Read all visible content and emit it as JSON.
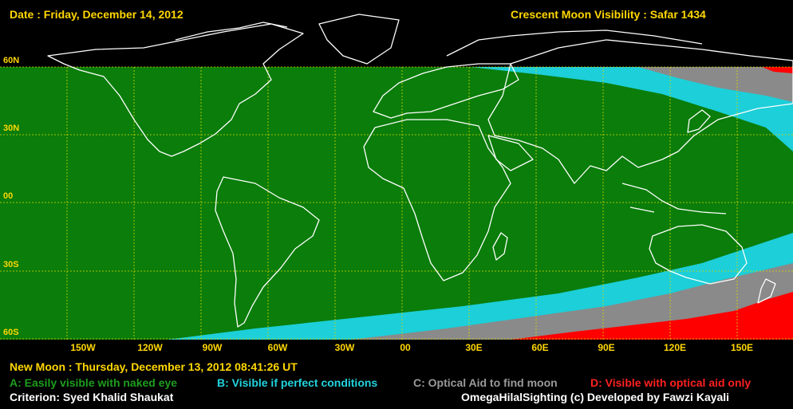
{
  "header": {
    "date": "Date : Friday, December 14, 2012",
    "visibility_title": "Crescent Moon Visibility : Safar  1434"
  },
  "map": {
    "lat_labels": [
      "60N",
      "30N",
      "00",
      "30S",
      "60S"
    ],
    "lon_labels": [
      "150W",
      "120W",
      "90W",
      "60W",
      "30W",
      "00",
      "30E",
      "60E",
      "90E",
      "120E",
      "150E"
    ],
    "colors": {
      "zone_a": "#0a7d0a",
      "zone_b": "#1ccfd8",
      "zone_c": "#8a8a8a",
      "zone_d": "#ff0000",
      "grid": "#d8d800",
      "coast": "#ffffff"
    }
  },
  "footer": {
    "new_moon": "New Moon : Thursday, December 13, 2012  08:41:26  UT",
    "legend_a": "A: Easily visible with naked eye",
    "legend_b": "B: Visible if perfect conditions",
    "legend_c": "C: Optical Aid to find moon",
    "legend_d": "D: Visible with optical aid only",
    "criterion": "Criterion: Syed Khalid Shaukat",
    "credit": "OmegaHilalSighting  (c)  Developed by Fawzi Kayali"
  }
}
